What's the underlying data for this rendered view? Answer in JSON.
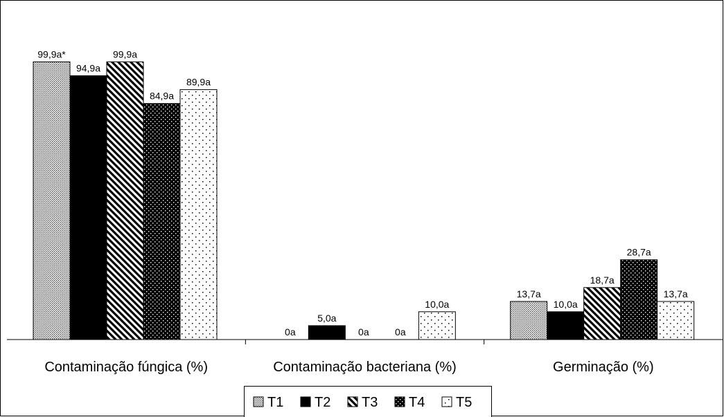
{
  "chart_data": {
    "type": "bar",
    "categories": [
      "Contaminação fúngica (%)",
      "Contaminação bacteriana (%)",
      "Germinação (%)"
    ],
    "series": [
      {
        "name": "T1",
        "values": [
          99.9,
          0,
          13.7
        ],
        "labels": [
          "99,9a*",
          "0a",
          "13,7a"
        ],
        "pattern": "fine-dots"
      },
      {
        "name": "T2",
        "values": [
          94.9,
          5.0,
          10.0
        ],
        "labels": [
          "94,9a",
          "5,0a",
          "10,0a"
        ],
        "pattern": "solid-black"
      },
      {
        "name": "T3",
        "values": [
          99.9,
          0,
          18.7
        ],
        "labels": [
          "99,9a",
          "0a",
          "18,7a"
        ],
        "pattern": "diagonal-stripes"
      },
      {
        "name": "T4",
        "values": [
          84.9,
          0,
          28.7
        ],
        "labels": [
          "84,9a",
          "0a",
          "28,7a"
        ],
        "pattern": "black-white-dots"
      },
      {
        "name": "T5",
        "values": [
          89.9,
          10.0,
          13.7
        ],
        "labels": [
          "89,9a",
          "10,0a",
          "13,7a"
        ],
        "pattern": "sparse-dots"
      }
    ],
    "ylim": [
      0,
      100
    ],
    "grid": false,
    "legend_position": "bottom"
  }
}
